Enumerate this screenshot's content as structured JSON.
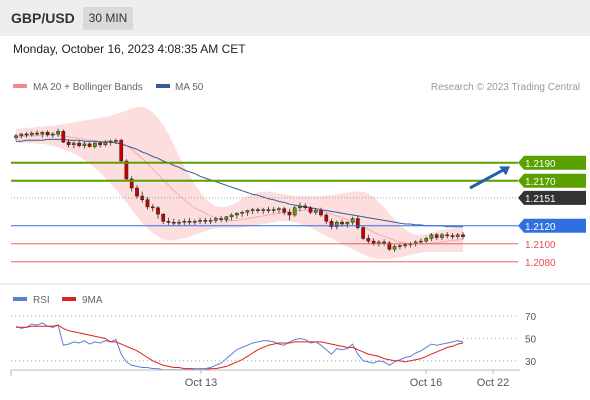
{
  "header": {
    "symbol": "GBP/USD",
    "timeframe": "30 MIN"
  },
  "timestamp": "Monday, October 16, 2023 4:08:35 AM CET",
  "legend": {
    "items": [
      {
        "label": "MA 20 + Bollinger Bands",
        "color": "#f08a8a"
      },
      {
        "label": "MA 50",
        "color": "#3b5a9a"
      }
    ],
    "credit": "Research © 2023 Trading Central"
  },
  "rsi_legend": {
    "items": [
      {
        "label": "RSI",
        "color": "#5a7fd6"
      },
      {
        "label": "9MA",
        "color": "#e02020"
      }
    ]
  },
  "colors": {
    "resistance": "#5aa000",
    "current": "#333333",
    "pivot": "#2f6fe0",
    "support": "#e84c4c",
    "bollinger": "#fbd3d3",
    "bull": "#5aa000",
    "bear": "#c80000",
    "arrow": "#2b5ea8"
  },
  "chart_data": [
    {
      "type": "candlestick",
      "x_labels": [
        "Oct 13",
        "Oct 16",
        "Oct 22"
      ],
      "ylim": [
        1.2062,
        1.2262
      ],
      "price_levels": [
        {
          "label": "1.2190",
          "value": 1.219,
          "kind": "resistance"
        },
        {
          "label": "1.2170",
          "value": 1.217,
          "kind": "resistance"
        },
        {
          "label": "1.2151",
          "value": 1.2151,
          "kind": "current"
        },
        {
          "label": "1.2120",
          "value": 1.212,
          "kind": "pivot"
        },
        {
          "label": "1.2100",
          "value": 1.21,
          "kind": "support"
        },
        {
          "label": "1.2080",
          "value": 1.208,
          "kind": "support"
        }
      ],
      "candles": [
        [
          1.2218,
          1.2222,
          1.2215,
          1.222
        ],
        [
          1.222,
          1.2223,
          1.2217,
          1.2222
        ],
        [
          1.2222,
          1.2224,
          1.2218,
          1.2221
        ],
        [
          1.2221,
          1.2225,
          1.2219,
          1.2223
        ],
        [
          1.2223,
          1.2226,
          1.222,
          1.2222
        ],
        [
          1.2222,
          1.2225,
          1.2218,
          1.2224
        ],
        [
          1.2224,
          1.2226,
          1.2219,
          1.2221
        ],
        [
          1.2221,
          1.2224,
          1.2218,
          1.2222
        ],
        [
          1.2222,
          1.2228,
          1.2219,
          1.2225
        ],
        [
          1.2225,
          1.2227,
          1.2212,
          1.2213
        ],
        [
          1.2213,
          1.2216,
          1.2207,
          1.221
        ],
        [
          1.221,
          1.2214,
          1.2206,
          1.2212
        ],
        [
          1.2212,
          1.2215,
          1.2207,
          1.2209
        ],
        [
          1.2209,
          1.2214,
          1.2206,
          1.2211
        ],
        [
          1.2211,
          1.2213,
          1.2207,
          1.2208
        ],
        [
          1.2208,
          1.2213,
          1.2206,
          1.2212
        ],
        [
          1.2212,
          1.2214,
          1.2207,
          1.221
        ],
        [
          1.221,
          1.2215,
          1.2208,
          1.2213
        ],
        [
          1.2213,
          1.2216,
          1.2209,
          1.2214
        ],
        [
          1.2214,
          1.2217,
          1.2211,
          1.2215
        ],
        [
          1.2215,
          1.2217,
          1.219,
          1.2192
        ],
        [
          1.2192,
          1.2194,
          1.217,
          1.2172
        ],
        [
          1.2172,
          1.2175,
          1.2158,
          1.2162
        ],
        [
          1.2162,
          1.2165,
          1.215,
          1.2153
        ],
        [
          1.2153,
          1.2158,
          1.2146,
          1.2149
        ],
        [
          1.2149,
          1.2152,
          1.2138,
          1.2141
        ],
        [
          1.2141,
          1.2144,
          1.2136,
          1.214
        ],
        [
          1.214,
          1.2142,
          1.2128,
          1.2133
        ],
        [
          1.2133,
          1.2134,
          1.2122,
          1.2125
        ],
        [
          1.2125,
          1.2129,
          1.2121,
          1.2124
        ],
        [
          1.2124,
          1.2128,
          1.212,
          1.2123
        ],
        [
          1.2123,
          1.2127,
          1.212,
          1.2124
        ],
        [
          1.2124,
          1.2128,
          1.2121,
          1.2125
        ],
        [
          1.2125,
          1.2129,
          1.2121,
          1.2124
        ],
        [
          1.2124,
          1.2127,
          1.2121,
          1.2125
        ],
        [
          1.2125,
          1.2129,
          1.2122,
          1.2126
        ],
        [
          1.2126,
          1.2129,
          1.2122,
          1.2125
        ],
        [
          1.2125,
          1.2129,
          1.2122,
          1.2126
        ],
        [
          1.2126,
          1.213,
          1.2123,
          1.2128
        ],
        [
          1.2128,
          1.2131,
          1.2124,
          1.2127
        ],
        [
          1.2127,
          1.2131,
          1.2124,
          1.213
        ],
        [
          1.213,
          1.2134,
          1.2126,
          1.2132
        ],
        [
          1.2132,
          1.2135,
          1.2128,
          1.2134
        ],
        [
          1.2134,
          1.2137,
          1.213,
          1.2135
        ],
        [
          1.2135,
          1.2138,
          1.2131,
          1.2137
        ],
        [
          1.2137,
          1.214,
          1.2133,
          1.2138
        ],
        [
          1.2138,
          1.214,
          1.2134,
          1.2137
        ],
        [
          1.2137,
          1.214,
          1.2133,
          1.2138
        ],
        [
          1.2138,
          1.2141,
          1.2134,
          1.2137
        ],
        [
          1.2137,
          1.2141,
          1.2134,
          1.2138
        ],
        [
          1.2138,
          1.2141,
          1.2134,
          1.2139
        ],
        [
          1.2139,
          1.2141,
          1.2132,
          1.2135
        ],
        [
          1.2135,
          1.2139,
          1.2126,
          1.2132
        ],
        [
          1.2132,
          1.2142,
          1.213,
          1.214
        ],
        [
          1.214,
          1.2146,
          1.2136,
          1.2142
        ],
        [
          1.2142,
          1.2145,
          1.2138,
          1.214
        ],
        [
          1.214,
          1.2142,
          1.2133,
          1.2135
        ],
        [
          1.2135,
          1.214,
          1.2132,
          1.2137
        ],
        [
          1.2137,
          1.214,
          1.213,
          1.2132
        ],
        [
          1.2132,
          1.2134,
          1.2122,
          1.2125
        ],
        [
          1.2125,
          1.2128,
          1.2116,
          1.2119
        ],
        [
          1.2119,
          1.2126,
          1.2116,
          1.2124
        ],
        [
          1.2124,
          1.2127,
          1.2119,
          1.2122
        ],
        [
          1.2122,
          1.2125,
          1.2118,
          1.2124
        ],
        [
          1.2124,
          1.213,
          1.2121,
          1.2128
        ],
        [
          1.2128,
          1.2131,
          1.2116,
          1.2118
        ],
        [
          1.2118,
          1.212,
          1.2104,
          1.2106
        ],
        [
          1.2106,
          1.211,
          1.21,
          1.2103
        ],
        [
          1.2103,
          1.2106,
          1.2098,
          1.21
        ],
        [
          1.21,
          1.2104,
          1.2097,
          1.2102
        ],
        [
          1.2102,
          1.2105,
          1.2098,
          1.2101
        ],
        [
          1.2101,
          1.2103,
          1.2092,
          1.2094
        ],
        [
          1.2094,
          1.2099,
          1.2091,
          1.2097
        ],
        [
          1.2097,
          1.21,
          1.2094,
          1.2098
        ],
        [
          1.2098,
          1.2101,
          1.2095,
          1.2099
        ],
        [
          1.2099,
          1.2102,
          1.2096,
          1.21
        ],
        [
          1.21,
          1.2104,
          1.2097,
          1.2102
        ],
        [
          1.2102,
          1.2106,
          1.21,
          1.2103
        ],
        [
          1.2103,
          1.2108,
          1.2101,
          1.2106
        ],
        [
          1.2106,
          1.2112,
          1.2103,
          1.211
        ],
        [
          1.211,
          1.2112,
          1.2104,
          1.2107
        ],
        [
          1.2107,
          1.2112,
          1.2104,
          1.211
        ],
        [
          1.211,
          1.2113,
          1.2106,
          1.2109
        ],
        [
          1.2109,
          1.2112,
          1.2105,
          1.2108
        ],
        [
          1.2108,
          1.2112,
          1.2105,
          1.211
        ],
        [
          1.211,
          1.2113,
          1.2105,
          1.2108
        ]
      ],
      "ma50": [
        1.2214,
        1.2214,
        1.2215,
        1.2215,
        1.2215,
        1.2215,
        1.2216,
        1.2216,
        1.2216,
        1.2216,
        1.2215,
        1.2215,
        1.2215,
        1.2214,
        1.2214,
        1.2214,
        1.2213,
        1.2213,
        1.2213,
        1.2212,
        1.2211,
        1.2209,
        1.2207,
        1.2205,
        1.2202,
        1.22,
        1.2197,
        1.2195,
        1.2192,
        1.219,
        1.2187,
        1.2185,
        1.2182,
        1.218,
        1.2178,
        1.2175,
        1.2173,
        1.2171,
        1.2169,
        1.2167,
        1.2165,
        1.2163,
        1.2161,
        1.2159,
        1.2157,
        1.2155,
        1.2154,
        1.2152,
        1.215,
        1.2149,
        1.2147,
        1.2146,
        1.2144,
        1.2143,
        1.2142,
        1.2141,
        1.214,
        1.2139,
        1.2138,
        1.2137,
        1.2136,
        1.2135,
        1.2134,
        1.2133,
        1.2132,
        1.2131,
        1.213,
        1.2129,
        1.2128,
        1.2127,
        1.2126,
        1.2125,
        1.2124,
        1.2123,
        1.2122,
        1.2122,
        1.2121,
        1.2121,
        1.212,
        1.212,
        1.212,
        1.212,
        1.2119,
        1.2119,
        1.2119,
        1.2119
      ],
      "ma20": [
        1.2219,
        1.2219,
        1.222,
        1.222,
        1.222,
        1.2221,
        1.2221,
        1.2221,
        1.2221,
        1.222,
        1.2219,
        1.2218,
        1.2217,
        1.2216,
        1.2215,
        1.2215,
        1.2214,
        1.2214,
        1.2214,
        1.2214,
        1.2212,
        1.2209,
        1.2205,
        1.22,
        1.2195,
        1.2189,
        1.2183,
        1.2177,
        1.2171,
        1.2165,
        1.2159,
        1.2154,
        1.2149,
        1.2144,
        1.214,
        1.2137,
        1.2134,
        1.2131,
        1.2129,
        1.2127,
        1.2126,
        1.2126,
        1.2126,
        1.2127,
        1.2128,
        1.2129,
        1.213,
        1.2131,
        1.2132,
        1.2133,
        1.2134,
        1.2135,
        1.2136,
        1.2137,
        1.2137,
        1.2137,
        1.2137,
        1.2137,
        1.2136,
        1.2135,
        1.2133,
        1.2131,
        1.2129,
        1.2127,
        1.2125,
        1.2122,
        1.2119,
        1.2116,
        1.2113,
        1.211,
        1.2108,
        1.2106,
        1.2104,
        1.2102,
        1.2101,
        1.21,
        1.21,
        1.21,
        1.21,
        1.2101,
        1.2101,
        1.2102,
        1.2103,
        1.2104,
        1.2104,
        1.2105
      ],
      "bb_upper": [
        1.2228,
        1.2228,
        1.2229,
        1.2229,
        1.223,
        1.223,
        1.2231,
        1.2231,
        1.2232,
        1.2233,
        1.2234,
        1.2235,
        1.2236,
        1.2237,
        1.2238,
        1.2239,
        1.224,
        1.2241,
        1.2242,
        1.2244,
        1.2246,
        1.2248,
        1.225,
        1.2252,
        1.2252,
        1.225,
        1.2246,
        1.224,
        1.2232,
        1.2222,
        1.221,
        1.2198,
        1.2186,
        1.2176,
        1.2166,
        1.2158,
        1.215,
        1.2145,
        1.2142,
        1.2141,
        1.2141,
        1.2143,
        1.2146,
        1.215,
        1.2153,
        1.2155,
        1.2157,
        1.2158,
        1.2158,
        1.2157,
        1.2156,
        1.2155,
        1.2154,
        1.2153,
        1.2153,
        1.2153,
        1.2153,
        1.2153,
        1.2153,
        1.2154,
        1.2154,
        1.2155,
        1.2156,
        1.2157,
        1.2158,
        1.2158,
        1.2158,
        1.2156,
        1.2152,
        1.2146,
        1.214,
        1.2133,
        1.2127,
        1.2121,
        1.2116,
        1.2112,
        1.211,
        1.211,
        1.2111,
        1.2112,
        1.2114,
        1.2115,
        1.2116,
        1.2117,
        1.2118,
        1.2118
      ],
      "bb_lower": [
        1.2212,
        1.2212,
        1.2212,
        1.2212,
        1.2211,
        1.2211,
        1.221,
        1.2209,
        1.2207,
        1.2205,
        1.2203,
        1.22,
        1.2197,
        1.2193,
        1.2189,
        1.2184,
        1.2179,
        1.2173,
        1.2167,
        1.216,
        1.2153,
        1.2146,
        1.2138,
        1.213,
        1.2123,
        1.2117,
        1.2112,
        1.2108,
        1.2105,
        1.2104,
        1.2104,
        1.2105,
        1.2106,
        1.2108,
        1.211,
        1.2112,
        1.2114,
        1.2116,
        1.2117,
        1.2118,
        1.2118,
        1.2118,
        1.2118,
        1.2118,
        1.2119,
        1.212,
        1.2121,
        1.2122,
        1.2123,
        1.2124,
        1.2125,
        1.2125,
        1.2125,
        1.2124,
        1.2122,
        1.212,
        1.2118,
        1.2115,
        1.2112,
        1.2109,
        1.2106,
        1.2103,
        1.21,
        1.2097,
        1.2094,
        1.2091,
        1.2088,
        1.2086,
        1.2084,
        1.2083,
        1.2083,
        1.2083,
        1.2084,
        1.2085,
        1.2086,
        1.2088,
        1.2089,
        1.209,
        1.2091,
        1.2091,
        1.2091,
        1.2091,
        1.2091,
        1.2091,
        1.2091,
        1.2091
      ],
      "forecast": {
        "from": 1.2162,
        "to": 1.2186
      }
    },
    {
      "type": "line",
      "title": "RSI",
      "ylim": [
        20,
        80
      ],
      "gridlines": [
        30,
        70
      ],
      "y_ticks": [
        70,
        50,
        30
      ],
      "series": [
        {
          "name": "RSI",
          "values": [
            61,
            59,
            60,
            63,
            62,
            64,
            61,
            60,
            62,
            44,
            45,
            47,
            46,
            48,
            45,
            47,
            46,
            48,
            47,
            49,
            36,
            29,
            26,
            25,
            24,
            24,
            23,
            23,
            22,
            22,
            22,
            22,
            22,
            23,
            23,
            23,
            23,
            24,
            26,
            28,
            32,
            36,
            40,
            42,
            44,
            46,
            47,
            48,
            48,
            47,
            45,
            44,
            47,
            49,
            50,
            49,
            46,
            47,
            44,
            40,
            36,
            41,
            40,
            41,
            45,
            36,
            30,
            29,
            28,
            30,
            29,
            26,
            29,
            31,
            33,
            34,
            37,
            39,
            42,
            45,
            44,
            45,
            46,
            47,
            48,
            47
          ]
        },
        {
          "name": "9MA",
          "values": [
            60,
            60,
            60,
            61,
            61,
            61,
            61,
            61,
            62,
            59,
            57,
            56,
            55,
            54,
            53,
            52,
            51,
            50,
            47,
            47,
            45,
            43,
            41,
            39,
            36,
            33,
            30,
            28,
            26,
            25,
            24,
            24,
            23,
            23,
            22,
            22,
            22,
            23,
            23,
            24,
            25,
            27,
            29,
            31,
            34,
            37,
            40,
            42,
            44,
            45,
            46,
            46,
            46,
            47,
            47,
            47,
            47,
            47,
            47,
            46,
            45,
            44,
            43,
            42,
            42,
            40,
            38,
            36,
            35,
            34,
            32,
            31,
            30,
            30,
            29,
            30,
            31,
            32,
            34,
            36,
            38,
            40,
            42,
            43,
            45,
            46
          ]
        }
      ]
    }
  ]
}
